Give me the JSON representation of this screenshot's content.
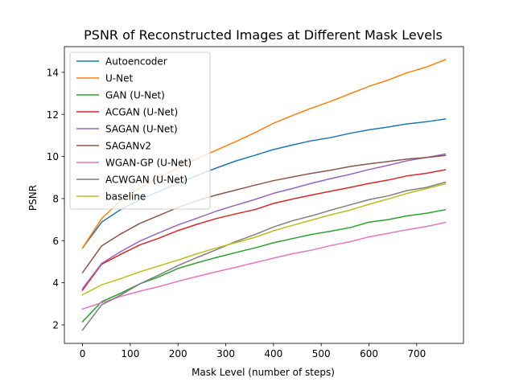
{
  "chart_data": {
    "type": "line",
    "title": "PSNR of Reconstructed Images at Different Mask Levels",
    "xlabel": "Mask Level (number of steps)",
    "ylabel": "PSNR",
    "xlim": [
      -38,
      798
    ],
    "ylim": [
      1.12,
      15.22
    ],
    "xticks": [
      0,
      100,
      200,
      300,
      400,
      500,
      600,
      700
    ],
    "yticks": [
      2,
      4,
      6,
      8,
      10,
      12,
      14
    ],
    "grid": false,
    "legend_position": "upper-left",
    "x": [
      0,
      40,
      80,
      120,
      160,
      200,
      240,
      280,
      320,
      360,
      400,
      440,
      480,
      520,
      560,
      600,
      640,
      680,
      720,
      760
    ],
    "series": [
      {
        "name": "Autoencoder",
        "color": "#1f77b4",
        "values": [
          5.65,
          6.88,
          7.48,
          7.95,
          8.35,
          8.72,
          9.1,
          9.45,
          9.78,
          10.05,
          10.33,
          10.55,
          10.75,
          10.9,
          11.1,
          11.27,
          11.4,
          11.55,
          11.65,
          11.78
        ]
      },
      {
        "name": "U-Net",
        "color": "#ff7f0e",
        "values": [
          5.65,
          7.05,
          7.9,
          8.5,
          9.0,
          9.45,
          9.9,
          10.3,
          10.7,
          11.12,
          11.58,
          11.95,
          12.3,
          12.62,
          12.98,
          13.33,
          13.63,
          13.98,
          14.25,
          14.6
        ]
      },
      {
        "name": "GAN (U-Net)",
        "color": "#2ca02c",
        "values": [
          2.15,
          3.1,
          3.5,
          3.95,
          4.28,
          4.68,
          4.95,
          5.2,
          5.43,
          5.65,
          5.9,
          6.1,
          6.3,
          6.45,
          6.62,
          6.88,
          7.0,
          7.18,
          7.3,
          7.47
        ]
      },
      {
        "name": "ACGAN (U-Net)",
        "color": "#d62728",
        "values": [
          3.65,
          4.88,
          5.35,
          5.8,
          6.12,
          6.48,
          6.78,
          7.05,
          7.27,
          7.47,
          7.77,
          7.98,
          8.17,
          8.35,
          8.53,
          8.72,
          8.88,
          9.08,
          9.2,
          9.37
        ]
      },
      {
        "name": "SAGAN (U-Net)",
        "color": "#9467bd",
        "values": [
          3.72,
          4.92,
          5.48,
          5.98,
          6.37,
          6.75,
          7.07,
          7.4,
          7.68,
          7.95,
          8.25,
          8.48,
          8.73,
          8.95,
          9.15,
          9.38,
          9.58,
          9.8,
          9.95,
          10.12
        ]
      },
      {
        "name": "SAGANv2",
        "color": "#8c564b",
        "values": [
          4.48,
          5.75,
          6.32,
          6.82,
          7.2,
          7.58,
          7.9,
          8.17,
          8.4,
          8.63,
          8.85,
          9.03,
          9.2,
          9.35,
          9.52,
          9.65,
          9.76,
          9.88,
          9.95,
          10.05
        ]
      },
      {
        "name": "WGAN-GP (U-Net)",
        "color": "#e377c2",
        "values": [
          2.75,
          3.05,
          3.35,
          3.6,
          3.82,
          4.07,
          4.3,
          4.52,
          4.73,
          4.95,
          5.17,
          5.38,
          5.55,
          5.77,
          5.95,
          6.18,
          6.35,
          6.52,
          6.67,
          6.87
        ]
      },
      {
        "name": "ACWGAN (U-Net)",
        "color": "#7f7f7f",
        "values": [
          1.75,
          2.95,
          3.42,
          3.95,
          4.37,
          4.82,
          5.2,
          5.57,
          5.95,
          6.28,
          6.65,
          6.95,
          7.18,
          7.45,
          7.7,
          7.95,
          8.13,
          8.38,
          8.53,
          8.78
        ]
      },
      {
        "name": "baseline",
        "color": "#bcbd22",
        "values": [
          3.43,
          3.9,
          4.2,
          4.52,
          4.8,
          5.08,
          5.38,
          5.65,
          5.9,
          6.15,
          6.47,
          6.73,
          6.98,
          7.23,
          7.45,
          7.73,
          7.98,
          8.25,
          8.47,
          8.7
        ]
      }
    ]
  }
}
